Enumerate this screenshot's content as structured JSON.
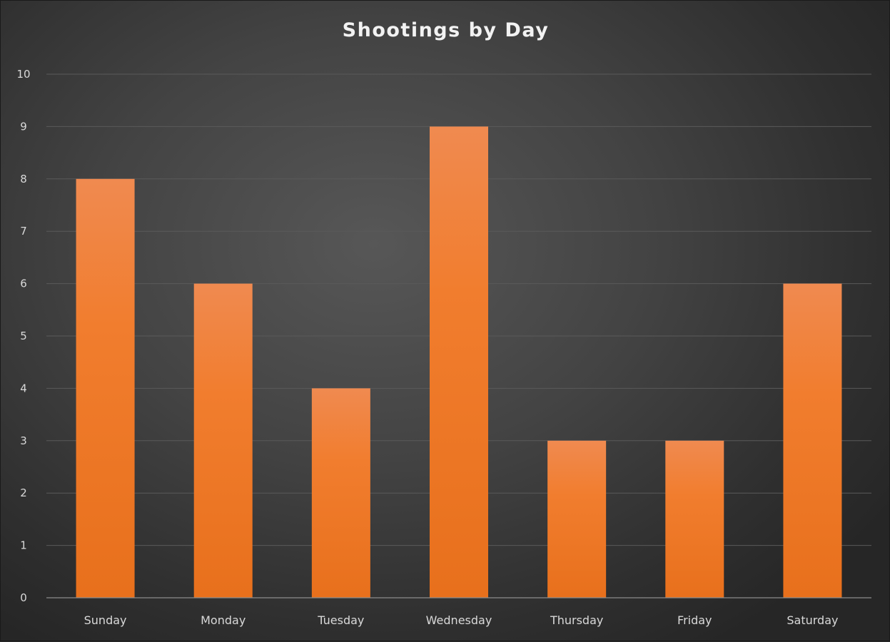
{
  "chart_data": {
    "type": "bar",
    "title": "Shootings by Day",
    "xlabel": "",
    "ylabel": "",
    "categories": [
      "Sunday",
      "Monday",
      "Tuesday",
      "Wednesday",
      "Thursday",
      "Friday",
      "Saturday"
    ],
    "values": [
      8,
      6,
      4,
      9,
      3,
      3,
      6
    ],
    "ylim": [
      0,
      10
    ],
    "yticks": [
      0,
      1,
      2,
      3,
      4,
      5,
      6,
      7,
      8,
      9,
      10
    ],
    "grid": true,
    "legend": "none",
    "colors": {
      "bar_top": "#f08a50",
      "bar_bottom": "#e8701c",
      "gridline": "#5a5a5a",
      "axis": "#8c8c8c",
      "text": "#d9d9d9"
    }
  }
}
